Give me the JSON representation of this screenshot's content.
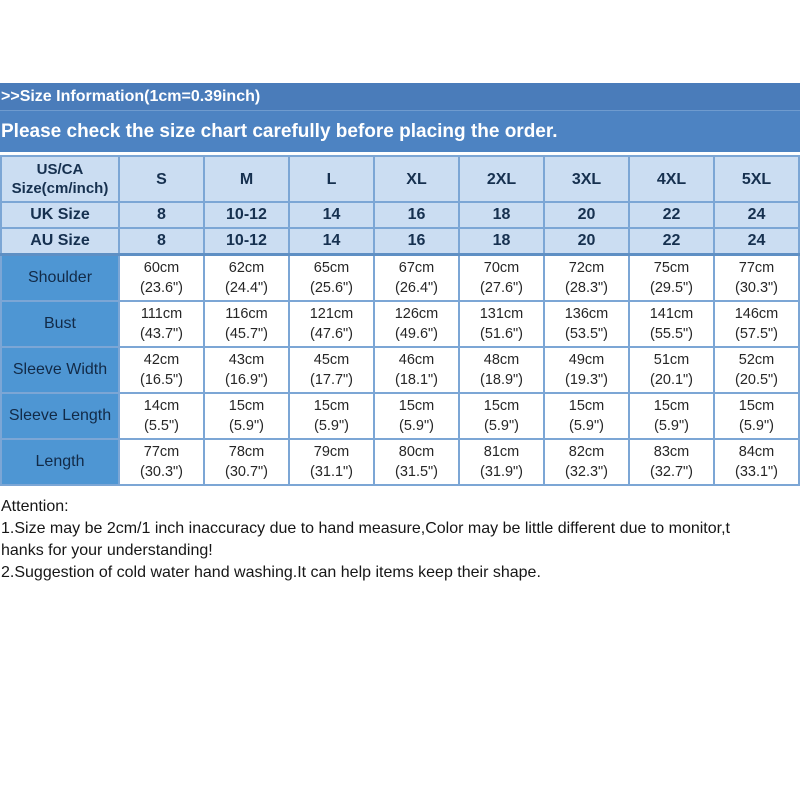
{
  "banner": {
    "title": ">>Size Information(1cm=0.39inch)",
    "subtitle": "Please check the size chart carefully before placing the order."
  },
  "colors": {
    "banner_blue": "#4a7cba",
    "banner_blue_light": "#4d83c2",
    "header_cell_bg": "#cbddf2",
    "label_cell_bg": "#4e96d3",
    "border_blue": "#7ca6d5",
    "text_white": "#ffffff",
    "text_dark": "#16304f"
  },
  "table": {
    "corner_line1": "US/CA",
    "corner_line2": "Size(cm/inch)",
    "sizes": [
      "S",
      "M",
      "L",
      "XL",
      "2XL",
      "3XL",
      "4XL",
      "5XL"
    ],
    "uk_row": {
      "label": "UK Size",
      "values": [
        "8",
        "10-12",
        "14",
        "16",
        "18",
        "20",
        "22",
        "24"
      ]
    },
    "au_row": {
      "label": "AU Size",
      "values": [
        "8",
        "10-12",
        "14",
        "16",
        "18",
        "20",
        "22",
        "24"
      ]
    },
    "measurements": [
      {
        "label": "Shoulder",
        "cm": [
          "60cm",
          "62cm",
          "65cm",
          "67cm",
          "70cm",
          "72cm",
          "75cm",
          "77cm"
        ],
        "inch": [
          "(23.6\")",
          "(24.4\")",
          "(25.6\")",
          "(26.4\")",
          "(27.6\")",
          "(28.3\")",
          "(29.5\")",
          "(30.3\")"
        ]
      },
      {
        "label": "Bust",
        "cm": [
          "111cm",
          "116cm",
          "121cm",
          "126cm",
          "131cm",
          "136cm",
          "141cm",
          "146cm"
        ],
        "inch": [
          "(43.7\")",
          "(45.7\")",
          "(47.6\")",
          "(49.6\")",
          "(51.6\")",
          "(53.5\")",
          "(55.5\")",
          "(57.5\")"
        ]
      },
      {
        "label": "Sleeve Width",
        "cm": [
          "42cm",
          "43cm",
          "45cm",
          "46cm",
          "48cm",
          "49cm",
          "51cm",
          "52cm"
        ],
        "inch": [
          "(16.5\")",
          "(16.9\")",
          "(17.7\")",
          "(18.1\")",
          "(18.9\")",
          "(19.3\")",
          "(20.1\")",
          "(20.5\")"
        ]
      },
      {
        "label": "Sleeve Length",
        "cm": [
          "14cm",
          "15cm",
          "15cm",
          "15cm",
          "15cm",
          "15cm",
          "15cm",
          "15cm"
        ],
        "inch": [
          "(5.5\")",
          "(5.9\")",
          "(5.9\")",
          "(5.9\")",
          "(5.9\")",
          "(5.9\")",
          "(5.9\")",
          "(5.9\")"
        ]
      },
      {
        "label": "Length",
        "cm": [
          "77cm",
          "78cm",
          "79cm",
          "80cm",
          "81cm",
          "82cm",
          "83cm",
          "84cm"
        ],
        "inch": [
          "(30.3\")",
          "(30.7\")",
          "(31.1\")",
          "(31.5\")",
          "(31.9\")",
          "(32.3\")",
          "(32.7\")",
          "(33.1\")"
        ]
      }
    ]
  },
  "attention": {
    "lines": [
      "Attention:",
      "1.Size may be 2cm/1 inch inaccuracy due to hand measure,Color may be little different due to monitor,t",
      "hanks for your understanding!",
      "2.Suggestion of cold water hand washing.It can help items keep their shape."
    ]
  }
}
